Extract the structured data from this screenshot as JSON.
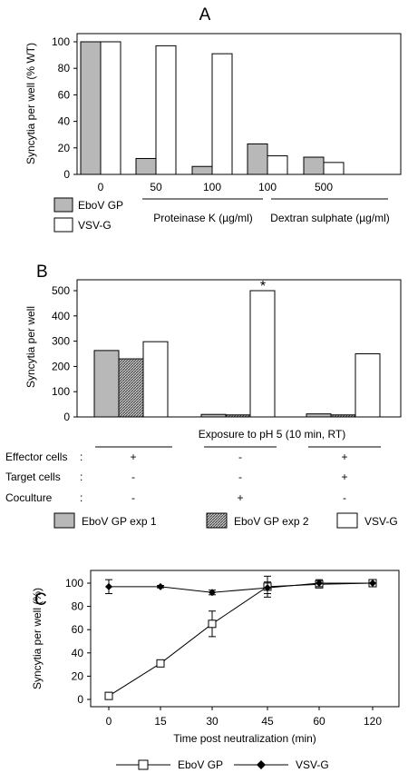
{
  "colors": {
    "ebov": "#b8b8b8",
    "vsv": "#ffffff",
    "stroke": "#000000"
  },
  "chart_data": [
    {
      "panel": "A",
      "type": "bar",
      "ylabel": "Syncytia per well (% WT)",
      "ylim": [
        0,
        100
      ],
      "yticks": [
        "0",
        "20",
        "40",
        "60",
        "80",
        "100"
      ],
      "categories": [
        "0",
        "50",
        "100",
        "100",
        "500"
      ],
      "group_labels": [
        {
          "label": "Proteinase K (µg/ml)",
          "span": [
            1,
            2
          ]
        },
        {
          "label": "Dextran sulphate (µg/ml)",
          "span": [
            3,
            4
          ]
        }
      ],
      "series": [
        {
          "name": "EboV GP",
          "values": [
            100,
            12,
            6,
            23,
            13
          ]
        },
        {
          "name": "VSV-G",
          "values": [
            100,
            97,
            91,
            14,
            9
          ]
        }
      ]
    },
    {
      "panel": "B",
      "type": "bar",
      "ylabel": "Syncytia per well",
      "ylim": [
        0,
        500
      ],
      "yticks": [
        "0",
        "100",
        "200",
        "300",
        "400",
        "500"
      ],
      "group_caption": "Exposure to pH 5 (10 min, RT)",
      "annotation": "*",
      "conditions": [
        {
          "label": "Effector cells",
          "sep": ":",
          "values": [
            "+",
            "-",
            "+"
          ]
        },
        {
          "label": "Target cells",
          "sep": ":",
          "values": [
            "-",
            "-",
            "+"
          ]
        },
        {
          "label": "Coculture",
          "sep": ":",
          "values": [
            "-",
            "+",
            "-"
          ]
        }
      ],
      "series": [
        {
          "name": "EboV GP exp 1",
          "values": [
            263,
            10,
            12
          ]
        },
        {
          "name": "EboV GP exp 2",
          "values": [
            230,
            8,
            8
          ]
        },
        {
          "name": "VSV-G",
          "values": [
            298,
            500,
            250
          ]
        }
      ]
    },
    {
      "panel": "C",
      "type": "line",
      "ylabel": "Syncytia per well (%)",
      "xlabel": "Time post neutralization (min)",
      "ylim": [
        0,
        100
      ],
      "yticks": [
        "0",
        "20",
        "40",
        "60",
        "80",
        "100"
      ],
      "x": [
        "0",
        "15",
        "30",
        "45",
        "60",
        "120"
      ],
      "series": [
        {
          "name": "EboV GP",
          "marker": "open-square",
          "values": [
            3,
            31,
            65,
            97,
            99,
            100
          ],
          "errors": [
            3,
            0,
            11,
            9,
            3,
            0
          ]
        },
        {
          "name": "VSV-G",
          "marker": "filled-diamond",
          "values": [
            97,
            97,
            92,
            96,
            100,
            100
          ],
          "errors": [
            6,
            1,
            2,
            5,
            3,
            0
          ]
        }
      ]
    }
  ]
}
